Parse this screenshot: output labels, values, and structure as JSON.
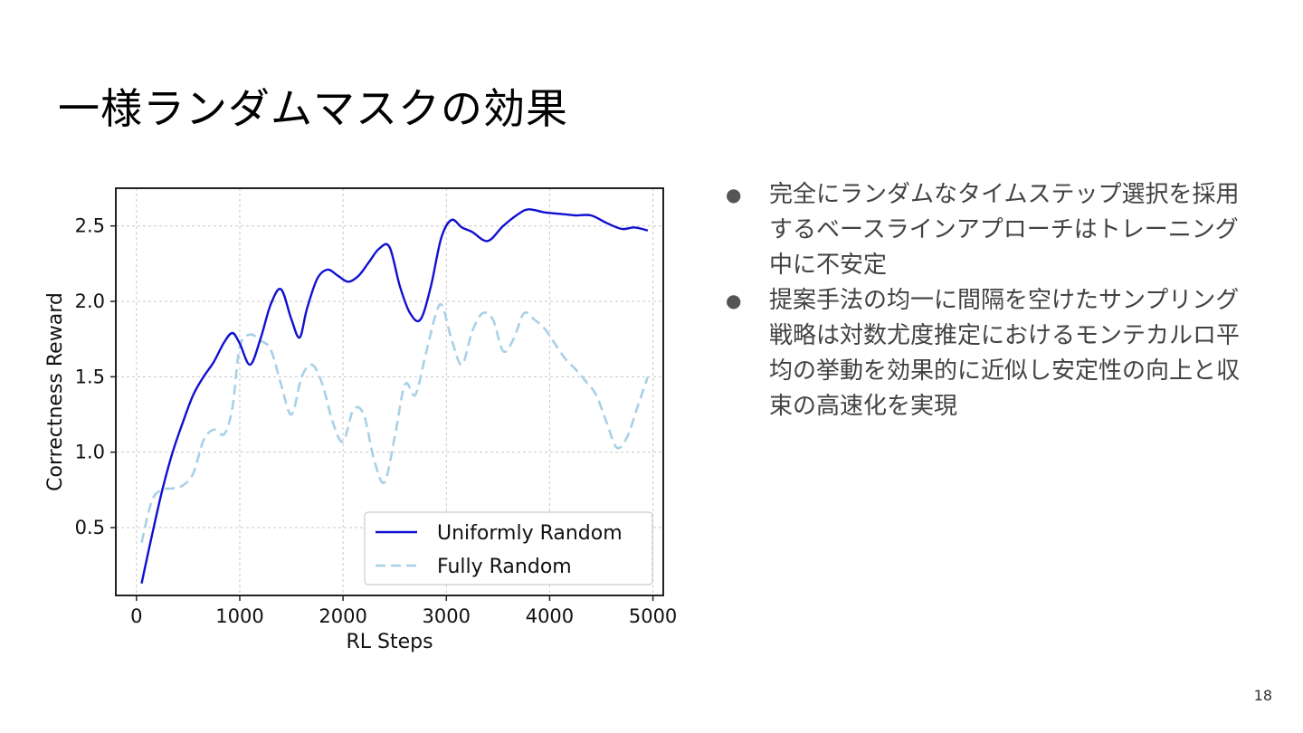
{
  "slide": {
    "title": "一様ランダムマスクの効果",
    "page_number": "18"
  },
  "bullets": [
    {
      "marker": "●",
      "text": "完全にランダムなタイムステップ選択を採用するベースラインアプローチはトレーニング中に不安定"
    },
    {
      "marker": "●",
      "text": "提案手法の均一に間隔を空けたサンプリング戦略は対数尤度推定におけるモンテカルロ平均の挙動を効果的に近似し安定性の向上と収束の高速化を実現"
    }
  ],
  "chart_data": {
    "type": "line",
    "xlabel": "RL Steps",
    "ylabel": "Correctness Reward",
    "xlim": [
      -200,
      5100
    ],
    "ylim": [
      0.05,
      2.75
    ],
    "xticks": [
      0,
      1000,
      2000,
      3000,
      4000,
      5000
    ],
    "yticks": [
      0.5,
      1.0,
      1.5,
      2.0,
      2.5
    ],
    "xtick_labels": [
      "0",
      "1000",
      "2000",
      "3000",
      "4000",
      "5000"
    ],
    "ytick_labels": [
      "0.5",
      "1.0",
      "1.5",
      "2.0",
      "2.5"
    ],
    "grid": true,
    "legend_position": "lower-right",
    "series": [
      {
        "name": "Uniformly Random",
        "color": "#1010d0",
        "style": "solid",
        "x": [
          50,
          150,
          250,
          350,
          450,
          550,
          650,
          750,
          850,
          930,
          1000,
          1100,
          1200,
          1300,
          1400,
          1500,
          1580,
          1650,
          1750,
          1850,
          1950,
          2050,
          2150,
          2250,
          2350,
          2450,
          2550,
          2650,
          2750,
          2850,
          2950,
          3050,
          3150,
          3250,
          3400,
          3550,
          3700,
          3800,
          3950,
          4100,
          4250,
          4400,
          4550,
          4700,
          4820,
          4950
        ],
        "values": [
          0.13,
          0.45,
          0.75,
          1.0,
          1.2,
          1.38,
          1.5,
          1.6,
          1.73,
          1.79,
          1.72,
          1.58,
          1.75,
          1.98,
          2.08,
          1.88,
          1.76,
          1.95,
          2.15,
          2.21,
          2.17,
          2.13,
          2.17,
          2.26,
          2.35,
          2.36,
          2.1,
          1.92,
          1.88,
          2.1,
          2.42,
          2.54,
          2.49,
          2.46,
          2.4,
          2.5,
          2.58,
          2.61,
          2.59,
          2.58,
          2.57,
          2.57,
          2.52,
          2.48,
          2.49,
          2.47
        ]
      },
      {
        "name": "Fully Random",
        "color": "#a8d0e6",
        "style": "dashed",
        "x": [
          50,
          150,
          250,
          350,
          450,
          550,
          650,
          750,
          850,
          930,
          1000,
          1100,
          1200,
          1300,
          1400,
          1500,
          1600,
          1700,
          1800,
          1900,
          2000,
          2100,
          2200,
          2300,
          2400,
          2500,
          2600,
          2700,
          2800,
          2900,
          2960,
          3050,
          3150,
          3250,
          3350,
          3450,
          3550,
          3650,
          3750,
          3850,
          3950,
          4050,
          4150,
          4250,
          4350,
          4450,
          4550,
          4650,
          4750,
          4850,
          4950
        ],
        "values": [
          0.4,
          0.68,
          0.75,
          0.76,
          0.78,
          0.86,
          1.08,
          1.15,
          1.12,
          1.3,
          1.7,
          1.78,
          1.74,
          1.68,
          1.45,
          1.25,
          1.5,
          1.58,
          1.45,
          1.2,
          1.07,
          1.28,
          1.25,
          0.95,
          0.8,
          1.1,
          1.45,
          1.38,
          1.65,
          1.92,
          1.97,
          1.75,
          1.58,
          1.8,
          1.92,
          1.88,
          1.67,
          1.75,
          1.92,
          1.88,
          1.82,
          1.72,
          1.62,
          1.55,
          1.47,
          1.38,
          1.2,
          1.03,
          1.1,
          1.3,
          1.5
        ]
      }
    ]
  }
}
